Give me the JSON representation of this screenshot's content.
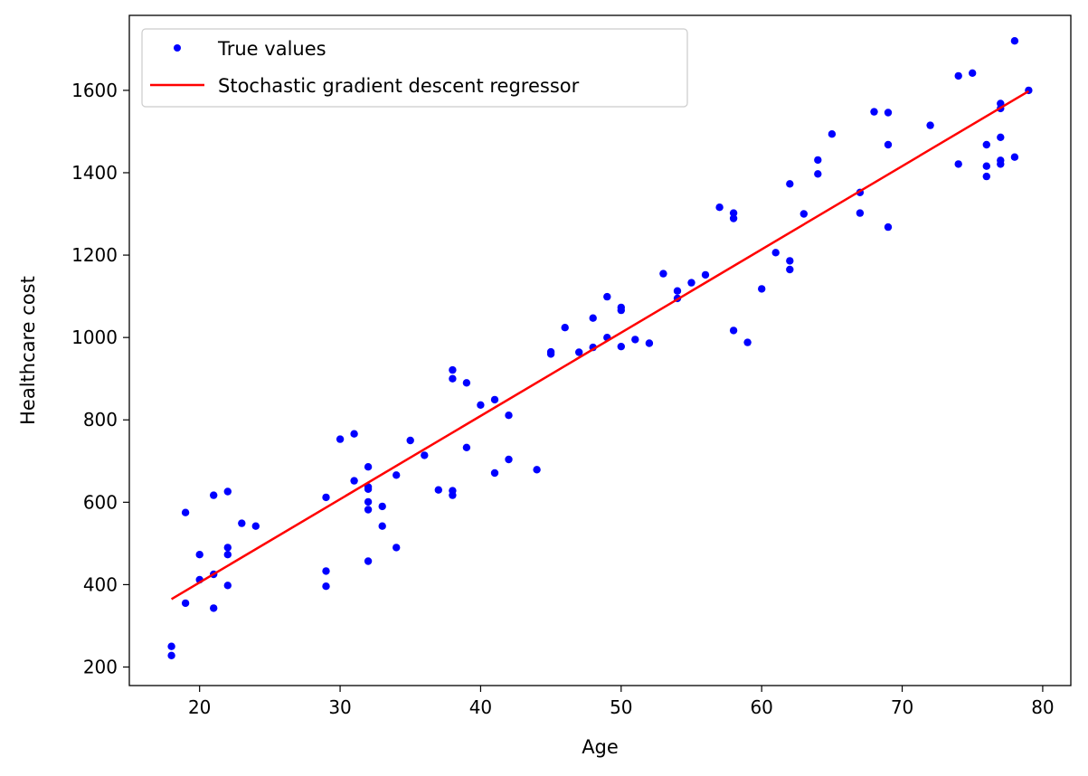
{
  "chart_data": {
    "type": "scatter",
    "xlabel": "Age",
    "ylabel": "Healthcare cost",
    "xlim": [
      15,
      82
    ],
    "ylim": [
      155,
      1782
    ],
    "xticks": [
      20,
      30,
      40,
      50,
      60,
      70,
      80
    ],
    "yticks": [
      200,
      400,
      600,
      800,
      1000,
      1200,
      1400,
      1600
    ],
    "legend_position": "top-left",
    "grid": false,
    "series": [
      {
        "name": "True values",
        "kind": "scatter",
        "color": "#0000ff",
        "points": [
          [
            18,
            250
          ],
          [
            18,
            228
          ],
          [
            19,
            575
          ],
          [
            19,
            355
          ],
          [
            20,
            473
          ],
          [
            20,
            412
          ],
          [
            21,
            617
          ],
          [
            21,
            425
          ],
          [
            21,
            343
          ],
          [
            22,
            626
          ],
          [
            22,
            490
          ],
          [
            22,
            473
          ],
          [
            22,
            398
          ],
          [
            23,
            549
          ],
          [
            24,
            542
          ],
          [
            29,
            612
          ],
          [
            29,
            433
          ],
          [
            29,
            396
          ],
          [
            30,
            753
          ],
          [
            31,
            766
          ],
          [
            31,
            652
          ],
          [
            32,
            686
          ],
          [
            32,
            637
          ],
          [
            32,
            632
          ],
          [
            32,
            601
          ],
          [
            32,
            582
          ],
          [
            32,
            457
          ],
          [
            33,
            590
          ],
          [
            33,
            542
          ],
          [
            34,
            666
          ],
          [
            34,
            490
          ],
          [
            35,
            750
          ],
          [
            36,
            714
          ],
          [
            37,
            630
          ],
          [
            38,
            921
          ],
          [
            38,
            900
          ],
          [
            38,
            628
          ],
          [
            38,
            617
          ],
          [
            39,
            890
          ],
          [
            39,
            733
          ],
          [
            40,
            836
          ],
          [
            41,
            849
          ],
          [
            41,
            671
          ],
          [
            42,
            811
          ],
          [
            42,
            704
          ],
          [
            44,
            679
          ],
          [
            45,
            965
          ],
          [
            45,
            960
          ],
          [
            46,
            1024
          ],
          [
            47,
            964
          ],
          [
            48,
            1047
          ],
          [
            48,
            976
          ],
          [
            49,
            1099
          ],
          [
            49,
            1000
          ],
          [
            50,
            1073
          ],
          [
            50,
            1066
          ],
          [
            50,
            978
          ],
          [
            51,
            995
          ],
          [
            52,
            986
          ],
          [
            53,
            1155
          ],
          [
            54,
            1113
          ],
          [
            54,
            1095
          ],
          [
            55,
            1133
          ],
          [
            56,
            1152
          ],
          [
            57,
            1316
          ],
          [
            58,
            1302
          ],
          [
            58,
            1289
          ],
          [
            58,
            1017
          ],
          [
            59,
            988
          ],
          [
            60,
            1118
          ],
          [
            61,
            1206
          ],
          [
            62,
            1373
          ],
          [
            62,
            1186
          ],
          [
            62,
            1165
          ],
          [
            63,
            1300
          ],
          [
            64,
            1431
          ],
          [
            64,
            1397
          ],
          [
            65,
            1494
          ],
          [
            67,
            1352
          ],
          [
            67,
            1302
          ],
          [
            68,
            1548
          ],
          [
            69,
            1546
          ],
          [
            69,
            1468
          ],
          [
            69,
            1268
          ],
          [
            72,
            1515
          ],
          [
            74,
            1635
          ],
          [
            74,
            1421
          ],
          [
            75,
            1642
          ],
          [
            76,
            1468
          ],
          [
            76,
            1416
          ],
          [
            76,
            1391
          ],
          [
            77,
            1568
          ],
          [
            77,
            1556
          ],
          [
            77,
            1486
          ],
          [
            77,
            1430
          ],
          [
            77,
            1421
          ],
          [
            78,
            1720
          ],
          [
            78,
            1438
          ],
          [
            79,
            1600
          ]
        ]
      },
      {
        "name": "Stochastic gradient descent regressor",
        "kind": "line",
        "color": "#ff0000",
        "points": [
          [
            18,
            365
          ],
          [
            79,
            1598
          ]
        ]
      }
    ]
  }
}
